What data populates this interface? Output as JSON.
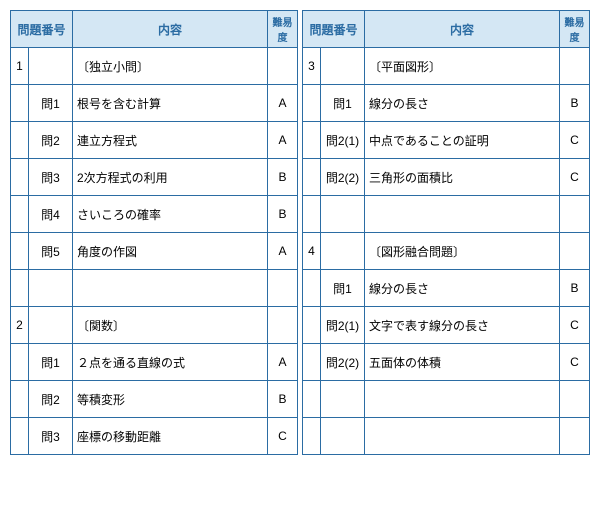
{
  "headers": {
    "question_no": "問題番号",
    "content": "内容",
    "difficulty": "難易度"
  },
  "left": [
    {
      "num": "1",
      "sub": "",
      "content": "〔独立小問〕",
      "diff": ""
    },
    {
      "num": "",
      "sub": "問1",
      "content": "根号を含む計算",
      "diff": "A"
    },
    {
      "num": "",
      "sub": "問2",
      "content": "連立方程式",
      "diff": "A"
    },
    {
      "num": "",
      "sub": "問3",
      "content": "2次方程式の利用",
      "diff": "B"
    },
    {
      "num": "",
      "sub": "問4",
      "content": "さいころの確率",
      "diff": "B"
    },
    {
      "num": "",
      "sub": "問5",
      "content": "角度の作図",
      "diff": "A"
    },
    {
      "num": "",
      "sub": "",
      "content": "",
      "diff": ""
    },
    {
      "num": "2",
      "sub": "",
      "content": "〔関数〕",
      "diff": ""
    },
    {
      "num": "",
      "sub": "問1",
      "content": "２点を通る直線の式",
      "diff": "A"
    },
    {
      "num": "",
      "sub": "問2",
      "content": "等積変形",
      "diff": "B"
    },
    {
      "num": "",
      "sub": "問3",
      "content": "座標の移動距離",
      "diff": "C"
    }
  ],
  "right": [
    {
      "num": "3",
      "sub": "",
      "content": "〔平面図形〕",
      "diff": ""
    },
    {
      "num": "",
      "sub": "問1",
      "content": "線分の長さ",
      "diff": "B"
    },
    {
      "num": "",
      "sub": "問2(1)",
      "content": "中点であることの証明",
      "diff": "C"
    },
    {
      "num": "",
      "sub": "問2(2)",
      "content": "三角形の面積比",
      "diff": "C"
    },
    {
      "num": "",
      "sub": "",
      "content": "",
      "diff": ""
    },
    {
      "num": "4",
      "sub": "",
      "content": "〔図形融合問題〕",
      "diff": ""
    },
    {
      "num": "",
      "sub": "問1",
      "content": "線分の長さ",
      "diff": "B"
    },
    {
      "num": "",
      "sub": "問2(1)",
      "content": "文字で表す線分の長さ",
      "diff": "C"
    },
    {
      "num": "",
      "sub": "問2(2)",
      "content": "五面体の体積",
      "diff": "C"
    },
    {
      "num": "",
      "sub": "",
      "content": "",
      "diff": ""
    },
    {
      "num": "",
      "sub": "",
      "content": "",
      "diff": ""
    }
  ]
}
